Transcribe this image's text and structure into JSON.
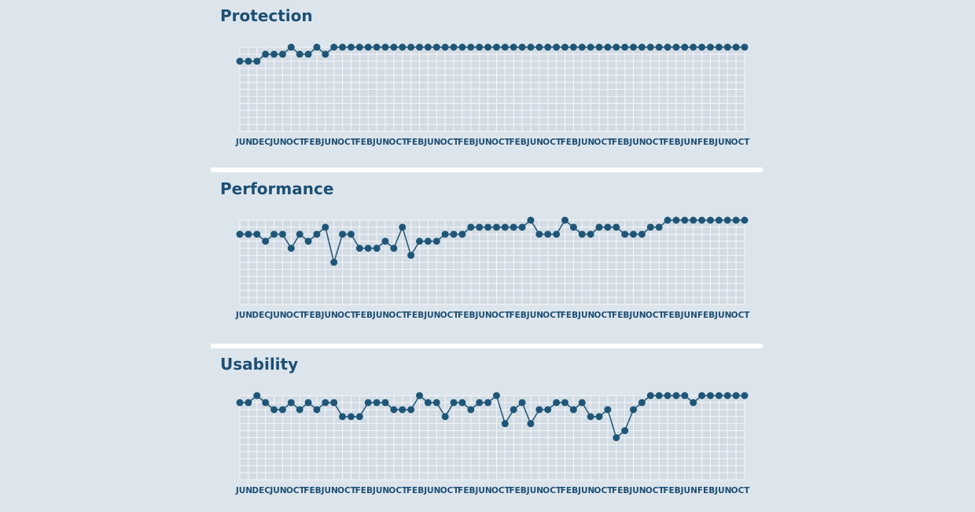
{
  "chart_data": [
    {
      "type": "line",
      "title": "Protection",
      "color": "#1f5677",
      "ylim": [
        0,
        6
      ],
      "yticks": [
        0,
        0.5,
        1,
        1.5,
        2,
        2.5,
        3,
        3.5,
        4,
        4.5,
        5,
        5.5,
        6
      ],
      "grid": true,
      "categories": [
        "JUN",
        null,
        "DEC",
        null,
        "JUN",
        null,
        "OCT",
        null,
        "FEB",
        null,
        "JUN",
        null,
        "OCT",
        null,
        "FEB",
        null,
        "JUN",
        null,
        "OCT",
        null,
        "FEB",
        null,
        "JUN",
        null,
        "OCT",
        null,
        "FEB",
        null,
        "JUN",
        null,
        "OCT",
        null,
        "FEB",
        null,
        "JUN",
        null,
        "OCT",
        null,
        "FEB",
        null,
        "JUN",
        null,
        "OCT",
        null,
        "FEB",
        null,
        "JUN",
        null,
        "OCT",
        null,
        "FEB",
        null,
        "JUN",
        null,
        "FEB",
        null,
        "JUN",
        null,
        "OCT",
        null
      ],
      "values": [
        5,
        5,
        5,
        5.5,
        5.5,
        5.5,
        6,
        5.5,
        5.5,
        6,
        5.5,
        6,
        6,
        6,
        6,
        6,
        6,
        6,
        6,
        6,
        6,
        6,
        6,
        6,
        6,
        6,
        6,
        6,
        6,
        6,
        6,
        6,
        6,
        6,
        6,
        6,
        6,
        6,
        6,
        6,
        6,
        6,
        6,
        6,
        6,
        6,
        6,
        6,
        6,
        6,
        6,
        6,
        6,
        6,
        6,
        6,
        6,
        6,
        6,
        6
      ]
    },
    {
      "type": "line",
      "title": "Performance",
      "color": "#1f5677",
      "ylim": [
        0,
        6
      ],
      "yticks": [
        0,
        0.5,
        1,
        1.5,
        2,
        2.5,
        3,
        3.5,
        4,
        4.5,
        5,
        5.5,
        6
      ],
      "grid": true,
      "categories": [
        "JUN",
        null,
        "DEC",
        null,
        "JUN",
        null,
        "OCT",
        null,
        "FEB",
        null,
        "JUN",
        null,
        "OCT",
        null,
        "FEB",
        null,
        "JUN",
        null,
        "OCT",
        null,
        "FEB",
        null,
        "JUN",
        null,
        "OCT",
        null,
        "FEB",
        null,
        "JUN",
        null,
        "OCT",
        null,
        "FEB",
        null,
        "JUN",
        null,
        "OCT",
        null,
        "FEB",
        null,
        "JUN",
        null,
        "OCT",
        null,
        "FEB",
        null,
        "JUN",
        null,
        "OCT",
        null,
        "FEB",
        null,
        "JUN",
        null,
        "FEB",
        null,
        "JUN",
        null,
        "OCT",
        null
      ],
      "values": [
        5,
        5,
        5,
        4.5,
        5,
        5,
        4,
        5,
        4.5,
        5,
        5.5,
        3,
        5,
        5,
        4,
        4,
        4,
        4.5,
        4,
        5.5,
        3.5,
        4.5,
        4.5,
        4.5,
        5,
        5,
        5,
        5.5,
        5.5,
        5.5,
        5.5,
        5.5,
        5.5,
        5.5,
        6,
        5,
        5,
        5,
        6,
        5.5,
        5,
        5,
        5.5,
        5.5,
        5.5,
        5,
        5,
        5,
        5.5,
        5.5,
        6,
        6,
        6,
        6,
        6,
        6,
        6,
        6,
        6,
        6
      ]
    },
    {
      "type": "line",
      "title": "Usability",
      "color": "#1f5677",
      "ylim": [
        0,
        6
      ],
      "yticks": [
        0,
        0.5,
        1,
        1.5,
        2,
        2.5,
        3,
        3.5,
        4,
        4.5,
        5,
        5.5,
        6
      ],
      "grid": true,
      "categories": [
        "JUN",
        null,
        "DEC",
        null,
        "JUN",
        null,
        "OCT",
        null,
        "FEB",
        null,
        "JUN",
        null,
        "OCT",
        null,
        "FEB",
        null,
        "JUN",
        null,
        "OCT",
        null,
        "FEB",
        null,
        "JUN",
        null,
        "OCT",
        null,
        "FEB",
        null,
        "JUN",
        null,
        "OCT",
        null,
        "FEB",
        null,
        "JUN",
        null,
        "OCT",
        null,
        "FEB",
        null,
        "JUN",
        null,
        "OCT",
        null,
        "FEB",
        null,
        "JUN",
        null,
        "OCT",
        null,
        "FEB",
        null,
        "JUN",
        null,
        "FEB",
        null,
        "JUN",
        null,
        "OCT",
        null
      ],
      "values": [
        5.5,
        5.5,
        6,
        5.5,
        5,
        5,
        5.5,
        5,
        5.5,
        5,
        5.5,
        5.5,
        4.5,
        4.5,
        4.5,
        5.5,
        5.5,
        5.5,
        5,
        5,
        5,
        6,
        5.5,
        5.5,
        4.5,
        5.5,
        5.5,
        5,
        5.5,
        5.5,
        6,
        4,
        5,
        5.5,
        4,
        5,
        5,
        5.5,
        5.5,
        5,
        5.5,
        4.5,
        4.5,
        5,
        3,
        3.5,
        5,
        5.5,
        6,
        6,
        6,
        6,
        6,
        5.5,
        6,
        6,
        6,
        6,
        6,
        6
      ]
    }
  ]
}
